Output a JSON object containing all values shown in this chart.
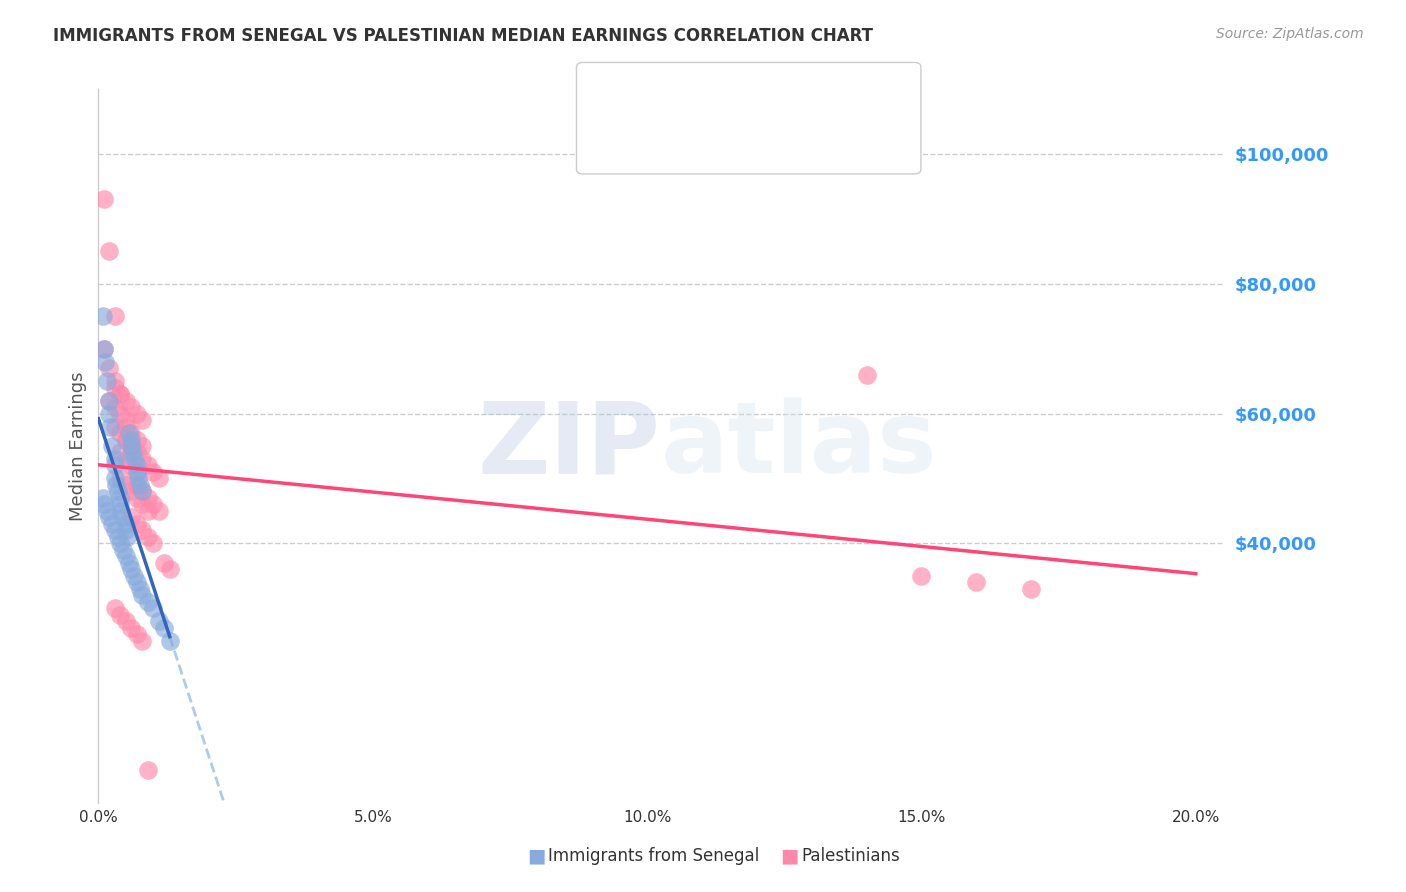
{
  "title": "IMMIGRANTS FROM SENEGAL VS PALESTINIAN MEDIAN EARNINGS CORRELATION CHART",
  "source": "Source: ZipAtlas.com",
  "ylabel": "Median Earnings",
  "ylim": [
    0,
    110000
  ],
  "xlim": [
    0.0,
    0.205
  ],
  "senegal_color": "#88AADD",
  "palestinian_color": "#FF88AA",
  "senegal_line_color": "#3366BB",
  "palestinian_line_color": "#FF4477",
  "extrapolation_color": "#AACCEE",
  "title_color": "#333333",
  "source_color": "#999999",
  "ytick_color": "#3399FF",
  "xtick_color": "#333333",
  "ylabel_color": "#555555",
  "grid_color": "#CCCCCC",
  "senegal_x": [
    0.0008,
    0.001,
    0.0012,
    0.0015,
    0.002,
    0.002,
    0.0022,
    0.0025,
    0.003,
    0.003,
    0.003,
    0.0032,
    0.0035,
    0.004,
    0.004,
    0.0042,
    0.0045,
    0.005,
    0.005,
    0.0052,
    0.0055,
    0.006,
    0.006,
    0.0062,
    0.0065,
    0.007,
    0.007,
    0.0072,
    0.0075,
    0.008,
    0.0008,
    0.001,
    0.0015,
    0.002,
    0.0025,
    0.003,
    0.0035,
    0.004,
    0.0045,
    0.005,
    0.0055,
    0.006,
    0.0065,
    0.007,
    0.0075,
    0.008,
    0.009,
    0.01,
    0.011,
    0.012,
    0.013
  ],
  "senegal_y": [
    75000,
    70000,
    68000,
    65000,
    62000,
    60000,
    58000,
    55000,
    53000,
    52000,
    50000,
    49000,
    48000,
    47000,
    46000,
    45000,
    44000,
    43000,
    42000,
    41000,
    57000,
    56000,
    55000,
    54000,
    53000,
    52000,
    51000,
    50000,
    49000,
    48000,
    47000,
    46000,
    45000,
    44000,
    43000,
    42000,
    41000,
    40000,
    39000,
    38000,
    37000,
    36000,
    35000,
    34000,
    33000,
    32000,
    31000,
    30000,
    28000,
    27000,
    25000
  ],
  "palestinian_x": [
    0.001,
    0.002,
    0.003,
    0.001,
    0.002,
    0.003,
    0.004,
    0.002,
    0.003,
    0.004,
    0.005,
    0.003,
    0.004,
    0.005,
    0.006,
    0.004,
    0.005,
    0.006,
    0.007,
    0.003,
    0.004,
    0.005,
    0.006,
    0.007,
    0.008,
    0.005,
    0.006,
    0.007,
    0.008,
    0.004,
    0.005,
    0.006,
    0.007,
    0.008,
    0.009,
    0.006,
    0.007,
    0.008,
    0.009,
    0.01,
    0.005,
    0.006,
    0.007,
    0.008,
    0.009,
    0.01,
    0.011,
    0.007,
    0.008,
    0.009,
    0.01,
    0.011,
    0.012,
    0.013,
    0.14,
    0.15,
    0.16,
    0.17,
    0.003,
    0.004,
    0.005,
    0.006,
    0.007,
    0.008,
    0.009
  ],
  "palestinian_y": [
    93000,
    85000,
    75000,
    70000,
    67000,
    65000,
    63000,
    62000,
    61000,
    60000,
    59000,
    58000,
    57000,
    56000,
    55000,
    54000,
    53000,
    52000,
    51000,
    64000,
    63000,
    62000,
    61000,
    60000,
    59000,
    58000,
    57000,
    56000,
    55000,
    50000,
    49000,
    48000,
    47000,
    46000,
    45000,
    44000,
    43000,
    42000,
    41000,
    40000,
    56000,
    55000,
    54000,
    53000,
    52000,
    51000,
    50000,
    49000,
    48000,
    47000,
    46000,
    45000,
    37000,
    36000,
    66000,
    35000,
    34000,
    33000,
    30000,
    29000,
    28000,
    27000,
    26000,
    25000,
    5000
  ]
}
